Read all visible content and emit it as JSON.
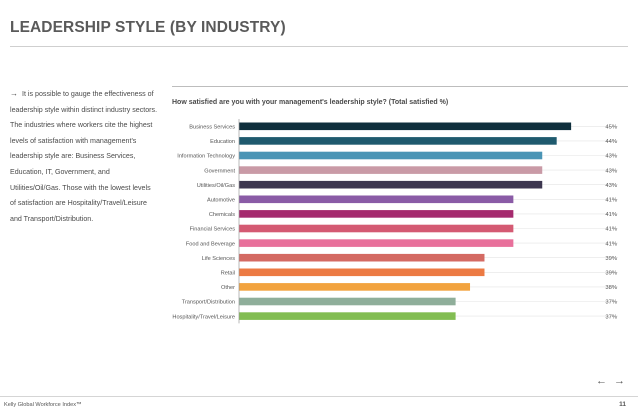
{
  "page": {
    "title": "LEADERSHIP STYLE (BY INDUSTRY)",
    "intro_arrow": "→",
    "intro_text": "It is possible to gauge the effectiveness of leadership style within distinct industry sectors. The industries where workers cite the highest levels of satisfaction with management's leadership style are: Business Services, Education, IT, Government, and Utilities/Oil/Gas. Those with the lowest levels of satisfaction are Hospitality/Travel/Leisure and Transport/Distribution."
  },
  "nav": {
    "prev_icon": "arrow-left-icon",
    "prev_glyph": "←",
    "next_icon": "arrow-right-icon",
    "next_glyph": "→"
  },
  "footer": {
    "left": "Kelly Global Workforce Index™",
    "page_number": "11"
  },
  "chart_data": {
    "type": "bar",
    "orientation": "horizontal",
    "title": "How satisfied are you with your management's leadership style? (Total satisfied %)",
    "categories": [
      "Business Services",
      "Education",
      "Information Technology",
      "Government",
      "Utilities/Oil/Gas",
      "Automotive",
      "Chemicals",
      "Financial Services",
      "Food and Beverage",
      "Life Sciences",
      "Retail",
      "Other",
      "Transport/Distribution",
      "Hospitality/Travel/Leisure"
    ],
    "values": [
      45,
      44,
      43,
      43,
      43,
      41,
      41,
      41,
      41,
      39,
      39,
      38,
      37,
      37
    ],
    "value_labels": [
      "45%",
      "44%",
      "43%",
      "43%",
      "43%",
      "41%",
      "41%",
      "41%",
      "41%",
      "39%",
      "39%",
      "38%",
      "37%",
      "37%"
    ],
    "colors": [
      "#0f2f3c",
      "#1f5a6e",
      "#4a94b5",
      "#c99aa6",
      "#3d3650",
      "#8a5ba6",
      "#a52a6e",
      "#d45a73",
      "#e8709b",
      "#d46a63",
      "#ec7a43",
      "#f2a33e",
      "#8fae9a",
      "#82bd52"
    ],
    "xlim": [
      22,
      47
    ],
    "grid": false
  }
}
